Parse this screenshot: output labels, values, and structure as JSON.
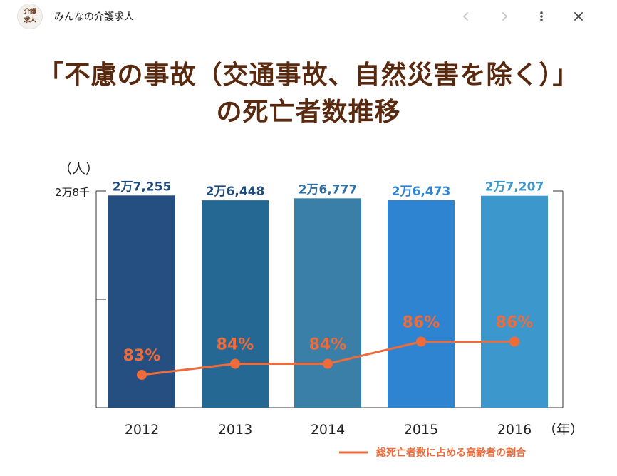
{
  "header": {
    "logo_line1": "介護",
    "logo_line2": "求人",
    "app_title": "みんなの介護求人",
    "back_icon": "chevron-left-icon",
    "forward_icon": "chevron-right-icon",
    "menu_icon": "more-vertical-icon",
    "close_icon": "close-icon"
  },
  "chart_data": {
    "type": "bar",
    "title_line1": "「不慮の事故（交通事故、自然災害を除く）」",
    "title_line2": "の死亡者数推移",
    "ylabel": "（人）",
    "y_tick_label": "2万8千",
    "x_unit": "（年）",
    "ylim": [
      0,
      28000
    ],
    "categories": [
      "2012",
      "2013",
      "2014",
      "2015",
      "2016"
    ],
    "bar_values": [
      27255,
      26448,
      26777,
      26473,
      27207
    ],
    "bar_labels": [
      "2万7,255",
      "2万6,448",
      "2万6,777",
      "2万6,473",
      "2万7,207"
    ],
    "bar_colors": [
      "#244f80",
      "#256893",
      "#3a7fa8",
      "#2f84d2",
      "#3c97cc"
    ],
    "bar_label_colors": [
      "#1f4a7c",
      "#1f4a7c",
      "#2f6fa3",
      "#2f84d2",
      "#3c97cc"
    ],
    "line_series": {
      "name": "総死亡者数に占める高齢者の割合",
      "values": [
        83,
        84,
        84,
        86,
        86
      ],
      "labels": [
        "83%",
        "84%",
        "84%",
        "86%",
        "86%"
      ],
      "color": "#ee6b3b"
    },
    "grid": false,
    "legend_position": "bottom-right"
  }
}
